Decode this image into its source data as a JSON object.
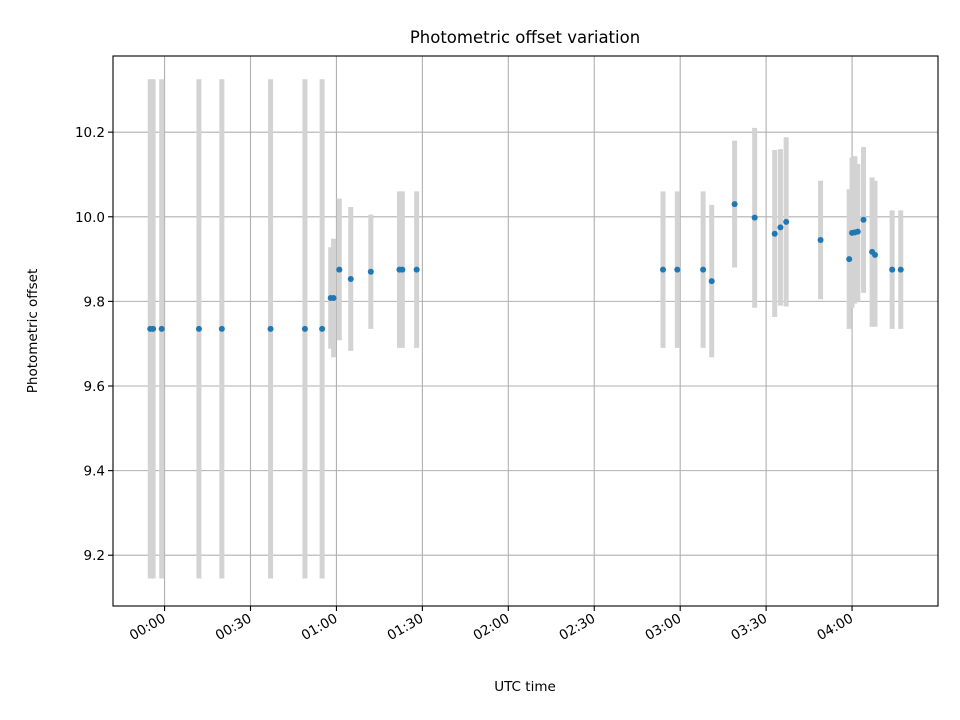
{
  "chart_data": {
    "type": "scatter",
    "title": "Photometric offset variation",
    "xlabel": "UTC time",
    "ylabel": "Photometric offset",
    "x_unit": "time (HH:MM)",
    "xlim": [
      "-00:18",
      "04:30"
    ],
    "ylim": [
      9.08,
      10.38
    ],
    "x_ticks": [
      "00:00",
      "00:30",
      "01:00",
      "01:30",
      "02:00",
      "02:30",
      "03:00",
      "03:30",
      "04:00"
    ],
    "y_ticks": [
      9.2,
      9.4,
      9.6,
      9.8,
      10.0,
      10.2
    ],
    "grid": true,
    "colors": {
      "marker": "#1f77b4",
      "errorbar": "#d3d3d3",
      "grid": "#b0b0b0"
    },
    "series": [
      {
        "points": [
          {
            "x": "-00:05",
            "y": 9.735,
            "lo": 9.145,
            "hi": 10.325
          },
          {
            "x": "-00:04",
            "y": 9.735,
            "lo": 9.145,
            "hi": 10.325
          },
          {
            "x": "-00:01",
            "y": 9.735,
            "lo": 9.145,
            "hi": 10.325
          },
          {
            "x": "00:12",
            "y": 9.735,
            "lo": 9.145,
            "hi": 10.325
          },
          {
            "x": "00:20",
            "y": 9.735,
            "lo": 9.145,
            "hi": 10.325
          },
          {
            "x": "00:37",
            "y": 9.735,
            "lo": 9.145,
            "hi": 10.325
          },
          {
            "x": "00:49",
            "y": 9.735,
            "lo": 9.145,
            "hi": 10.325
          },
          {
            "x": "00:55",
            "y": 9.735,
            "lo": 9.145,
            "hi": 10.325
          },
          {
            "x": "00:58",
            "y": 9.808,
            "lo": 9.688,
            "hi": 9.928
          },
          {
            "x": "00:59",
            "y": 9.808,
            "lo": 9.668,
            "hi": 9.948
          },
          {
            "x": "01:01",
            "y": 9.875,
            "lo": 9.708,
            "hi": 10.043
          },
          {
            "x": "01:05",
            "y": 9.853,
            "lo": 9.683,
            "hi": 10.023
          },
          {
            "x": "01:12",
            "y": 9.87,
            "lo": 9.735,
            "hi": 10.005
          },
          {
            "x": "01:22",
            "y": 9.875,
            "lo": 9.69,
            "hi": 10.06
          },
          {
            "x": "01:23",
            "y": 9.875,
            "lo": 9.69,
            "hi": 10.06
          },
          {
            "x": "01:28",
            "y": 9.875,
            "lo": 9.69,
            "hi": 10.06
          },
          {
            "x": "02:54",
            "y": 9.875,
            "lo": 9.69,
            "hi": 10.06
          },
          {
            "x": "02:59",
            "y": 9.875,
            "lo": 9.69,
            "hi": 10.06
          },
          {
            "x": "03:08",
            "y": 9.875,
            "lo": 9.69,
            "hi": 10.06
          },
          {
            "x": "03:11",
            "y": 9.848,
            "lo": 9.668,
            "hi": 10.028
          },
          {
            "x": "03:19",
            "y": 10.03,
            "lo": 9.88,
            "hi": 10.18
          },
          {
            "x": "03:26",
            "y": 9.998,
            "lo": 9.785,
            "hi": 10.21
          },
          {
            "x": "03:33",
            "y": 9.96,
            "lo": 9.763,
            "hi": 10.158
          },
          {
            "x": "03:35",
            "y": 9.975,
            "lo": 9.79,
            "hi": 10.16
          },
          {
            "x": "03:37",
            "y": 9.988,
            "lo": 9.788,
            "hi": 10.188
          },
          {
            "x": "03:49",
            "y": 9.945,
            "lo": 9.805,
            "hi": 10.085
          },
          {
            "x": "03:59",
            "y": 9.9,
            "lo": 9.735,
            "hi": 10.065
          },
          {
            "x": "04:00",
            "y": 9.962,
            "lo": 9.785,
            "hi": 10.14
          },
          {
            "x": "04:01",
            "y": 9.963,
            "lo": 9.795,
            "hi": 10.143
          },
          {
            "x": "04:02",
            "y": 9.965,
            "lo": 9.8,
            "hi": 10.125
          },
          {
            "x": "04:04",
            "y": 9.993,
            "lo": 9.82,
            "hi": 10.165
          },
          {
            "x": "04:07",
            "y": 9.917,
            "lo": 9.74,
            "hi": 10.093
          },
          {
            "x": "04:08",
            "y": 9.91,
            "lo": 9.74,
            "hi": 10.085
          },
          {
            "x": "04:14",
            "y": 9.875,
            "lo": 9.735,
            "hi": 10.015
          },
          {
            "x": "04:17",
            "y": 9.875,
            "lo": 9.735,
            "hi": 10.015
          }
        ]
      }
    ]
  }
}
